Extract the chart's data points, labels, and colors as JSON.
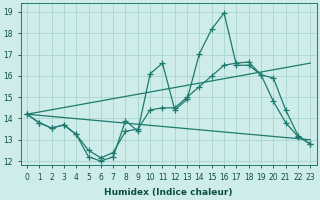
{
  "xlabel": "Humidex (Indice chaleur)",
  "background_color": "#cdecea",
  "grid_color": "#aad4d0",
  "line_color": "#1e7a6e",
  "xlim": [
    -0.5,
    23.5
  ],
  "ylim": [
    11.8,
    19.4
  ],
  "xtick_labels": [
    "0",
    "1",
    "2",
    "3",
    "4",
    "5",
    "6",
    "7",
    "8",
    "9",
    "10",
    "11",
    "12",
    "13",
    "14",
    "15",
    "16",
    "17",
    "18",
    "19",
    "20",
    "21",
    "22",
    "23"
  ],
  "ytick_labels": [
    "12",
    "13",
    "14",
    "15",
    "16",
    "17",
    "18",
    "19"
  ],
  "line1_x": [
    0,
    1,
    2,
    3,
    4,
    5,
    6,
    7,
    8,
    9,
    10,
    11,
    12,
    13,
    14,
    15,
    16,
    17,
    18,
    19,
    20,
    21,
    22,
    23
  ],
  "line1_y": [
    14.2,
    13.8,
    13.55,
    13.7,
    13.25,
    12.2,
    12.0,
    12.2,
    13.9,
    13.4,
    16.1,
    16.6,
    14.4,
    14.9,
    17.05,
    18.2,
    18.95,
    16.5,
    16.5,
    16.05,
    14.8,
    13.8,
    13.15,
    12.8
  ],
  "line2_x": [
    0,
    1,
    2,
    3,
    4,
    5,
    6,
    7,
    8,
    9,
    10,
    11,
    12,
    13,
    14,
    15,
    16,
    17,
    18,
    19,
    20,
    21,
    22,
    23
  ],
  "line2_y": [
    14.2,
    13.8,
    13.55,
    13.7,
    13.25,
    12.5,
    12.15,
    12.4,
    13.4,
    13.5,
    14.4,
    14.5,
    14.5,
    15.0,
    15.5,
    16.0,
    16.5,
    16.6,
    16.65,
    16.05,
    15.9,
    14.4,
    13.2,
    12.8
  ],
  "trend1_x": [
    0,
    23
  ],
  "trend1_y": [
    14.2,
    13.0
  ],
  "trend2_x": [
    0,
    23
  ],
  "trend2_y": [
    14.2,
    16.6
  ]
}
